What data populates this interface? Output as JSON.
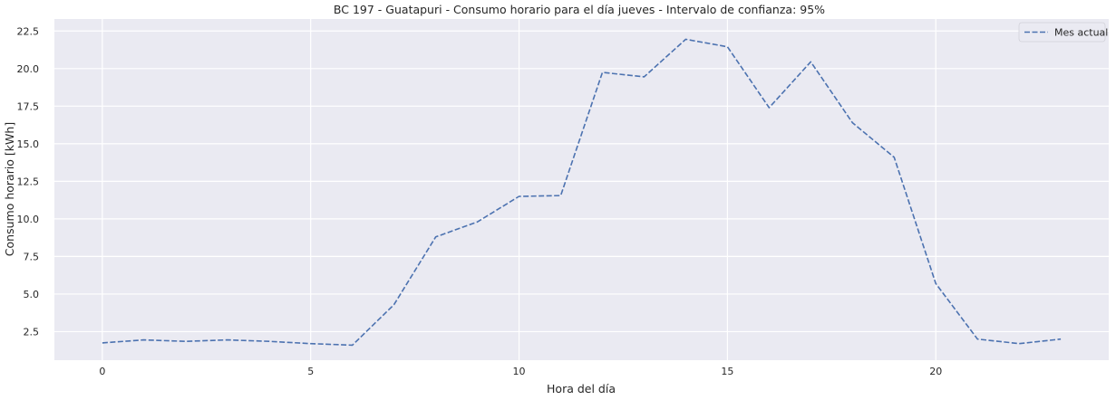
{
  "chart_data": {
    "type": "line",
    "title": "BC 197 - Guatapuri - Consumo horario para el día jueves - Intervalo de confianza: 95%",
    "xlabel": "Hora del día",
    "ylabel": "Consumo horario [kWh]",
    "xlim": [
      -1.15,
      24.15
    ],
    "ylim": [
      0.6,
      23.3
    ],
    "x_ticks": [
      0,
      5,
      10,
      15,
      20
    ],
    "x_tick_labels": [
      "0",
      "5",
      "10",
      "15",
      "20"
    ],
    "y_ticks": [
      2.5,
      5.0,
      7.5,
      10.0,
      12.5,
      15.0,
      17.5,
      20.0,
      22.5
    ],
    "y_tick_labels": [
      "2.5",
      "5.0",
      "7.5",
      "10.0",
      "12.5",
      "15.0",
      "17.5",
      "20.0",
      "22.5"
    ],
    "grid": true,
    "legend_position": "top-right",
    "background_color": "#eaeaf2",
    "series": [
      {
        "name": "Mes actual",
        "line_style": "dashed",
        "color": "#4c72b0",
        "x": [
          0,
          1,
          2,
          3,
          4,
          5,
          6,
          7,
          8,
          9,
          10,
          11,
          12,
          13,
          14,
          15,
          16,
          17,
          18,
          19,
          20,
          21,
          22,
          23
        ],
        "y": [
          1.75,
          1.95,
          1.85,
          1.95,
          1.85,
          1.7,
          1.6,
          4.3,
          8.8,
          9.8,
          11.5,
          11.55,
          19.75,
          19.45,
          21.95,
          21.45,
          17.4,
          20.45,
          16.4,
          14.1,
          5.7,
          2.0,
          1.7,
          2.0
        ]
      }
    ]
  }
}
